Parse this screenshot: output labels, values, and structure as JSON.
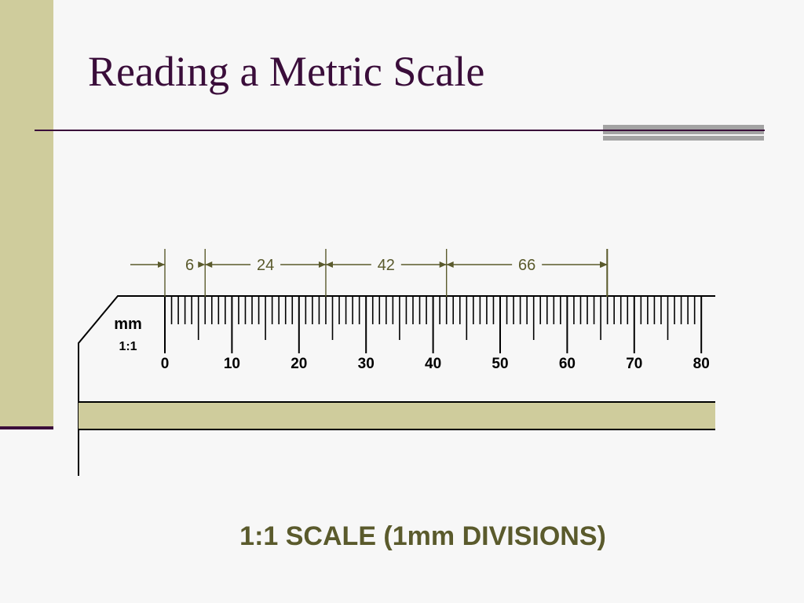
{
  "slide": {
    "title": "Reading a Metric Scale",
    "caption": "1:1 SCALE (1mm DIVISIONS)"
  },
  "ruler": {
    "unit_label": "mm",
    "scale_label": "1:1",
    "range_mm": [
      0,
      80
    ],
    "minor_division_mm": 1,
    "major_labels": [
      "0",
      "10",
      "20",
      "30",
      "40",
      "50",
      "60",
      "70",
      "80"
    ]
  },
  "dimensions": [
    {
      "label": "6",
      "from_mm": 0,
      "to_mm": 6
    },
    {
      "label": "24",
      "from_mm": 6,
      "to_mm": 24
    },
    {
      "label": "42",
      "from_mm": 24,
      "to_mm": 42
    },
    {
      "label": "66",
      "from_mm": 42,
      "to_mm": 66
    }
  ],
  "colors": {
    "title": "#3a0d3a",
    "caption": "#5a5a2c",
    "dimension_line": "#5a5a2c",
    "ruler_stroke": "#000000",
    "accent_band": "#cfcc9c",
    "accent_gray": "#a3a3a3",
    "background": "#f7f7f7"
  }
}
